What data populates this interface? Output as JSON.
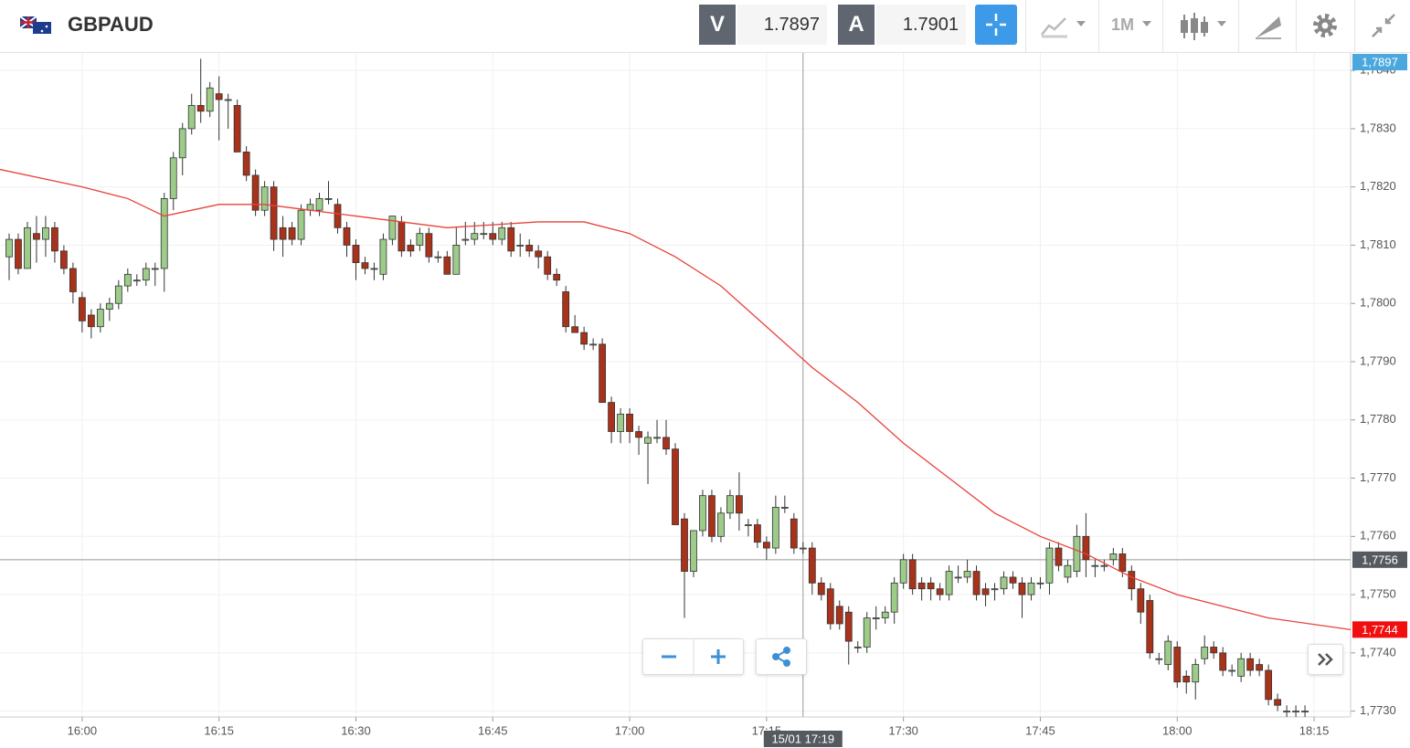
{
  "header": {
    "instrument": "GBPAUD",
    "bid": {
      "letter": "V",
      "price": 1.7897
    },
    "ask": {
      "letter": "A",
      "price": 1.7901
    },
    "timeframe": "1M"
  },
  "chart_data": {
    "type": "candlestick",
    "up_color": "#9dcb8a",
    "down_color": "#a8321a",
    "grid": true,
    "x": [
      "15:52",
      "15:53",
      "15:54",
      "15:55",
      "15:56",
      "15:57",
      "15:58",
      "15:59",
      "16:00",
      "16:01",
      "16:02",
      "16:03",
      "16:04",
      "16:05",
      "16:06",
      "16:07",
      "16:08",
      "16:09",
      "16:10",
      "16:11",
      "16:12",
      "16:13",
      "16:14",
      "16:15",
      "16:16",
      "16:17",
      "16:18",
      "16:19",
      "16:20",
      "16:21",
      "16:22",
      "16:23",
      "16:24",
      "16:25",
      "16:26",
      "16:27",
      "16:28",
      "16:29",
      "16:30",
      "16:31",
      "16:32",
      "16:33",
      "16:34",
      "16:35",
      "16:36",
      "16:37",
      "16:38",
      "16:39",
      "16:40",
      "16:41",
      "16:42",
      "16:43",
      "16:44",
      "16:45",
      "16:46",
      "16:47",
      "16:48",
      "16:49",
      "16:50",
      "16:51",
      "16:52",
      "16:53",
      "16:54",
      "16:55",
      "16:56",
      "16:57",
      "16:58",
      "16:59",
      "17:00",
      "17:01",
      "17:02",
      "17:03",
      "17:04",
      "17:05",
      "17:06",
      "17:07",
      "17:08",
      "17:09",
      "17:10",
      "17:11",
      "17:12",
      "17:13",
      "17:14",
      "17:15",
      "17:16",
      "17:17",
      "17:18",
      "17:19",
      "17:20",
      "17:21",
      "17:22",
      "17:23",
      "17:24",
      "17:25",
      "17:26",
      "17:27",
      "17:28",
      "17:29",
      "17:30",
      "17:31",
      "17:32",
      "17:33",
      "17:34",
      "17:35",
      "17:36",
      "17:37",
      "17:38",
      "17:39",
      "17:40",
      "17:41",
      "17:42",
      "17:43",
      "17:44",
      "17:45",
      "17:46",
      "17:47",
      "17:48",
      "17:49",
      "17:50",
      "17:51",
      "17:52",
      "17:53",
      "17:54",
      "17:55",
      "17:56",
      "17:57",
      "17:58",
      "17:59",
      "18:00",
      "18:01",
      "18:02",
      "18:03",
      "18:04",
      "18:05",
      "18:06",
      "18:07",
      "18:08",
      "18:09",
      "18:10",
      "18:11",
      "18:12",
      "18:13",
      "18:14"
    ],
    "open": [
      1.7808,
      1.7811,
      1.7806,
      1.7812,
      1.7811,
      1.7813,
      1.7809,
      1.7806,
      1.7801,
      1.7798,
      1.7796,
      1.7799,
      1.78,
      1.7803,
      1.7804,
      1.7804,
      1.7806,
      1.7806,
      1.7818,
      1.7825,
      1.783,
      1.7834,
      1.7833,
      1.7836,
      1.7835,
      1.7834,
      1.7826,
      1.7822,
      1.7816,
      1.782,
      1.7813,
      1.7813,
      1.7811,
      1.7816,
      1.7816,
      1.7818,
      1.7817,
      1.7813,
      1.781,
      1.7807,
      1.7806,
      1.7805,
      1.7811,
      1.7814,
      1.781,
      1.781,
      1.7812,
      1.7808,
      1.7808,
      1.7805,
      1.7811,
      1.7811,
      1.7812,
      1.7812,
      1.7811,
      1.7813,
      1.781,
      1.781,
      1.7809,
      1.7808,
      1.7805,
      1.7802,
      1.7796,
      1.7795,
      1.7793,
      1.7793,
      1.7783,
      1.7778,
      1.7781,
      1.7778,
      1.7776,
      1.7777,
      1.7777,
      1.7775,
      1.7763,
      1.7754,
      1.7761,
      1.7767,
      1.776,
      1.7764,
      1.7767,
      1.7762,
      1.7762,
      1.7759,
      1.7758,
      1.7765,
      1.7763,
      1.7758,
      1.7758,
      1.7752,
      1.7751,
      1.7748,
      1.7747,
      1.7741,
      1.7741,
      1.7746,
      1.7746,
      1.7747,
      1.7752,
      1.7756,
      1.7752,
      1.7752,
      1.7751,
      1.775,
      1.7753,
      1.7753,
      1.7754,
      1.7751,
      1.7751,
      1.7751,
      1.7753,
      1.7752,
      1.775,
      1.7752,
      1.7752,
      1.7758,
      1.7753,
      1.7754,
      1.776,
      1.7755,
      1.7755,
      1.7756,
      1.7757,
      1.7754,
      1.7751,
      1.7749,
      1.7739,
      1.7738,
      1.7741,
      1.7736,
      1.7735,
      1.7739,
      1.7741,
      1.774,
      1.7737,
      1.7736,
      1.7739,
      1.7738,
      1.7737,
      1.7732,
      1.773,
      1.773,
      1.773
    ],
    "high": [
      1.7812,
      1.7812,
      1.7814,
      1.7815,
      1.7815,
      1.7814,
      1.781,
      1.7807,
      1.7802,
      1.7799,
      1.78,
      1.7801,
      1.7804,
      1.7806,
      1.7805,
      1.7807,
      1.7807,
      1.7819,
      1.7826,
      1.7831,
      1.7836,
      1.7842,
      1.7838,
      1.7839,
      1.7836,
      1.7835,
      1.7827,
      1.7823,
      1.7821,
      1.7821,
      1.7815,
      1.7814,
      1.7817,
      1.7818,
      1.7819,
      1.7821,
      1.7818,
      1.7814,
      1.7811,
      1.7808,
      1.7807,
      1.7812,
      1.7815,
      1.7815,
      1.7811,
      1.7813,
      1.7813,
      1.7809,
      1.7809,
      1.7813,
      1.7814,
      1.7814,
      1.7814,
      1.7814,
      1.7814,
      1.7814,
      1.7812,
      1.7811,
      1.781,
      1.7809,
      1.7806,
      1.7803,
      1.7798,
      1.7796,
      1.7794,
      1.7794,
      1.7784,
      1.7782,
      1.7782,
      1.7779,
      1.7778,
      1.778,
      1.778,
      1.7776,
      1.7764,
      1.7761,
      1.7768,
      1.7768,
      1.7765,
      1.7768,
      1.7771,
      1.7763,
      1.7763,
      1.776,
      1.7767,
      1.7767,
      1.7764,
      1.7759,
      1.7759,
      1.7753,
      1.7752,
      1.7749,
      1.7748,
      1.7742,
      1.7747,
      1.7748,
      1.7748,
      1.7753,
      1.7757,
      1.7757,
      1.7753,
      1.7753,
      1.7752,
      1.7755,
      1.7755,
      1.7756,
      1.7755,
      1.7752,
      1.7752,
      1.7754,
      1.7754,
      1.7753,
      1.7753,
      1.7753,
      1.7759,
      1.7759,
      1.7756,
      1.7762,
      1.7764,
      1.7756,
      1.7756,
      1.7758,
      1.7758,
      1.7755,
      1.7752,
      1.775,
      1.774,
      1.7743,
      1.7742,
      1.7737,
      1.7739,
      1.7743,
      1.7742,
      1.7741,
      1.7738,
      1.774,
      1.774,
      1.7739,
      1.7738,
      1.7733,
      1.7731,
      1.7731,
      1.7731
    ],
    "low": [
      1.7804,
      1.7805,
      1.7806,
      1.7807,
      1.7808,
      1.7807,
      1.7805,
      1.78,
      1.7795,
      1.7794,
      1.7795,
      1.7797,
      1.7799,
      1.7802,
      1.7803,
      1.7803,
      1.7803,
      1.7802,
      1.7816,
      1.7822,
      1.7829,
      1.7831,
      1.7832,
      1.7828,
      1.783,
      1.7826,
      1.7821,
      1.7815,
      1.7815,
      1.7809,
      1.7808,
      1.781,
      1.781,
      1.7815,
      1.7815,
      1.7817,
      1.7812,
      1.7808,
      1.7804,
      1.7805,
      1.7804,
      1.7804,
      1.781,
      1.7808,
      1.7808,
      1.7809,
      1.7807,
      1.7807,
      1.7805,
      1.7805,
      1.781,
      1.781,
      1.7811,
      1.781,
      1.781,
      1.7808,
      1.7808,
      1.7808,
      1.7806,
      1.7804,
      1.7803,
      1.7795,
      1.7795,
      1.7792,
      1.7792,
      1.7783,
      1.7776,
      1.7776,
      1.7776,
      1.7774,
      1.7769,
      1.7776,
      1.7774,
      1.7762,
      1.7746,
      1.7753,
      1.776,
      1.7759,
      1.7759,
      1.7763,
      1.7761,
      1.776,
      1.7758,
      1.7756,
      1.7757,
      1.7764,
      1.7757,
      1.7757,
      1.775,
      1.7749,
      1.7744,
      1.7744,
      1.7738,
      1.774,
      1.774,
      1.7744,
      1.7745,
      1.7745,
      1.7751,
      1.775,
      1.7749,
      1.7749,
      1.7749,
      1.7749,
      1.7752,
      1.7752,
      1.7749,
      1.7748,
      1.7749,
      1.775,
      1.7751,
      1.7746,
      1.7749,
      1.7751,
      1.775,
      1.7754,
      1.7752,
      1.7753,
      1.7753,
      1.7753,
      1.7754,
      1.7755,
      1.7753,
      1.7749,
      1.7745,
      1.7739,
      1.7738,
      1.7737,
      1.7734,
      1.7733,
      1.7732,
      1.7738,
      1.7739,
      1.7736,
      1.7736,
      1.7735,
      1.7736,
      1.7736,
      1.7731,
      1.773,
      1.7729,
      1.7729,
      1.7729
    ],
    "close": [
      1.7811,
      1.7806,
      1.7813,
      1.7811,
      1.7813,
      1.7809,
      1.7806,
      1.7802,
      1.7797,
      1.7796,
      1.7799,
      1.78,
      1.7803,
      1.7805,
      1.7804,
      1.7806,
      1.7806,
      1.7818,
      1.7825,
      1.783,
      1.7834,
      1.7833,
      1.7837,
      1.7835,
      1.7835,
      1.7826,
      1.7822,
      1.7816,
      1.782,
      1.7811,
      1.7811,
      1.7811,
      1.7816,
      1.7817,
      1.7818,
      1.7818,
      1.7813,
      1.781,
      1.7807,
      1.7806,
      1.7806,
      1.7811,
      1.7815,
      1.7809,
      1.7809,
      1.7812,
      1.7808,
      1.7808,
      1.7805,
      1.781,
      1.7811,
      1.7812,
      1.7812,
      1.7811,
      1.7813,
      1.7809,
      1.781,
      1.7809,
      1.7808,
      1.7805,
      1.7804,
      1.7796,
      1.7795,
      1.7793,
      1.7793,
      1.7783,
      1.7778,
      1.7781,
      1.7778,
      1.7777,
      1.7777,
      1.7777,
      1.7775,
      1.7762,
      1.7754,
      1.7761,
      1.7767,
      1.776,
      1.7764,
      1.7767,
      1.7764,
      1.7762,
      1.7759,
      1.7758,
      1.7765,
      1.7765,
      1.7758,
      1.7758,
      1.7752,
      1.775,
      1.7745,
      1.7745,
      1.7742,
      1.7741,
      1.7746,
      1.7746,
      1.7747,
      1.7752,
      1.7756,
      1.7751,
      1.7751,
      1.7751,
      1.775,
      1.7754,
      1.7753,
      1.7754,
      1.775,
      1.775,
      1.7751,
      1.7753,
      1.7752,
      1.775,
      1.7752,
      1.7752,
      1.7758,
      1.7755,
      1.7755,
      1.776,
      1.7756,
      1.7755,
      1.7755,
      1.7757,
      1.7754,
      1.7751,
      1.7747,
      1.774,
      1.7739,
      1.7742,
      1.7735,
      1.7735,
      1.7738,
      1.7741,
      1.774,
      1.7737,
      1.7737,
      1.7739,
      1.7737,
      1.7737,
      1.7732,
      1.7731,
      1.773,
      1.773,
      1.773
    ],
    "ma": {
      "color": "#e8423a",
      "x": [
        "15:51",
        "16:00",
        "16:05",
        "16:09",
        "16:15",
        "16:20",
        "16:25",
        "16:30",
        "16:40",
        "16:50",
        "16:55",
        "17:00",
        "17:05",
        "17:10",
        "17:15",
        "17:20",
        "17:25",
        "17:30",
        "17:35",
        "17:40",
        "17:45",
        "17:50",
        "17:55",
        "18:00",
        "18:05",
        "18:10",
        "18:19"
      ],
      "values": [
        1.7823,
        1.782,
        1.7818,
        1.7815,
        1.7817,
        1.7817,
        1.7816,
        1.7815,
        1.7813,
        1.7814,
        1.7814,
        1.7812,
        1.7808,
        1.7803,
        1.7796,
        1.7789,
        1.7783,
        1.7776,
        1.777,
        1.7764,
        1.776,
        1.7757,
        1.7753,
        1.775,
        1.7748,
        1.7746,
        1.7744
      ]
    },
    "xlim": [
      "15:51",
      "18:19"
    ],
    "xticks": [
      "16:00",
      "16:15",
      "16:30",
      "16:45",
      "17:00",
      "17:15",
      "17:30",
      "17:45",
      "18:00",
      "18:15"
    ],
    "ylim": [
      1.7729,
      1.7843
    ],
    "yticks": [
      {
        "value": 1.773,
        "label": "1,7730"
      },
      {
        "value": 1.774,
        "label": "1,7740"
      },
      {
        "value": 1.775,
        "label": "1,7750"
      },
      {
        "value": 1.776,
        "label": "1,7760"
      },
      {
        "value": 1.777,
        "label": "1,7770"
      },
      {
        "value": 1.778,
        "label": "1,7780"
      },
      {
        "value": 1.779,
        "label": "1,7790"
      },
      {
        "value": 1.78,
        "label": "1,7800"
      },
      {
        "value": 1.781,
        "label": "1,7810"
      },
      {
        "value": 1.782,
        "label": "1,7820"
      },
      {
        "value": 1.783,
        "label": "1,7830"
      },
      {
        "value": 1.784,
        "label": "1,7840"
      }
    ],
    "price_labels": [
      {
        "value": 1.7897,
        "label": "1,7897",
        "color": "#4aa8df"
      },
      {
        "value": 1.7744,
        "label": "1,7744",
        "color": "#f20f0f"
      }
    ],
    "crosshair": {
      "x": "17:19",
      "x_label": "15/01 17:19",
      "value": 1.7756,
      "label": "1,7756",
      "color": "#555a60"
    }
  }
}
